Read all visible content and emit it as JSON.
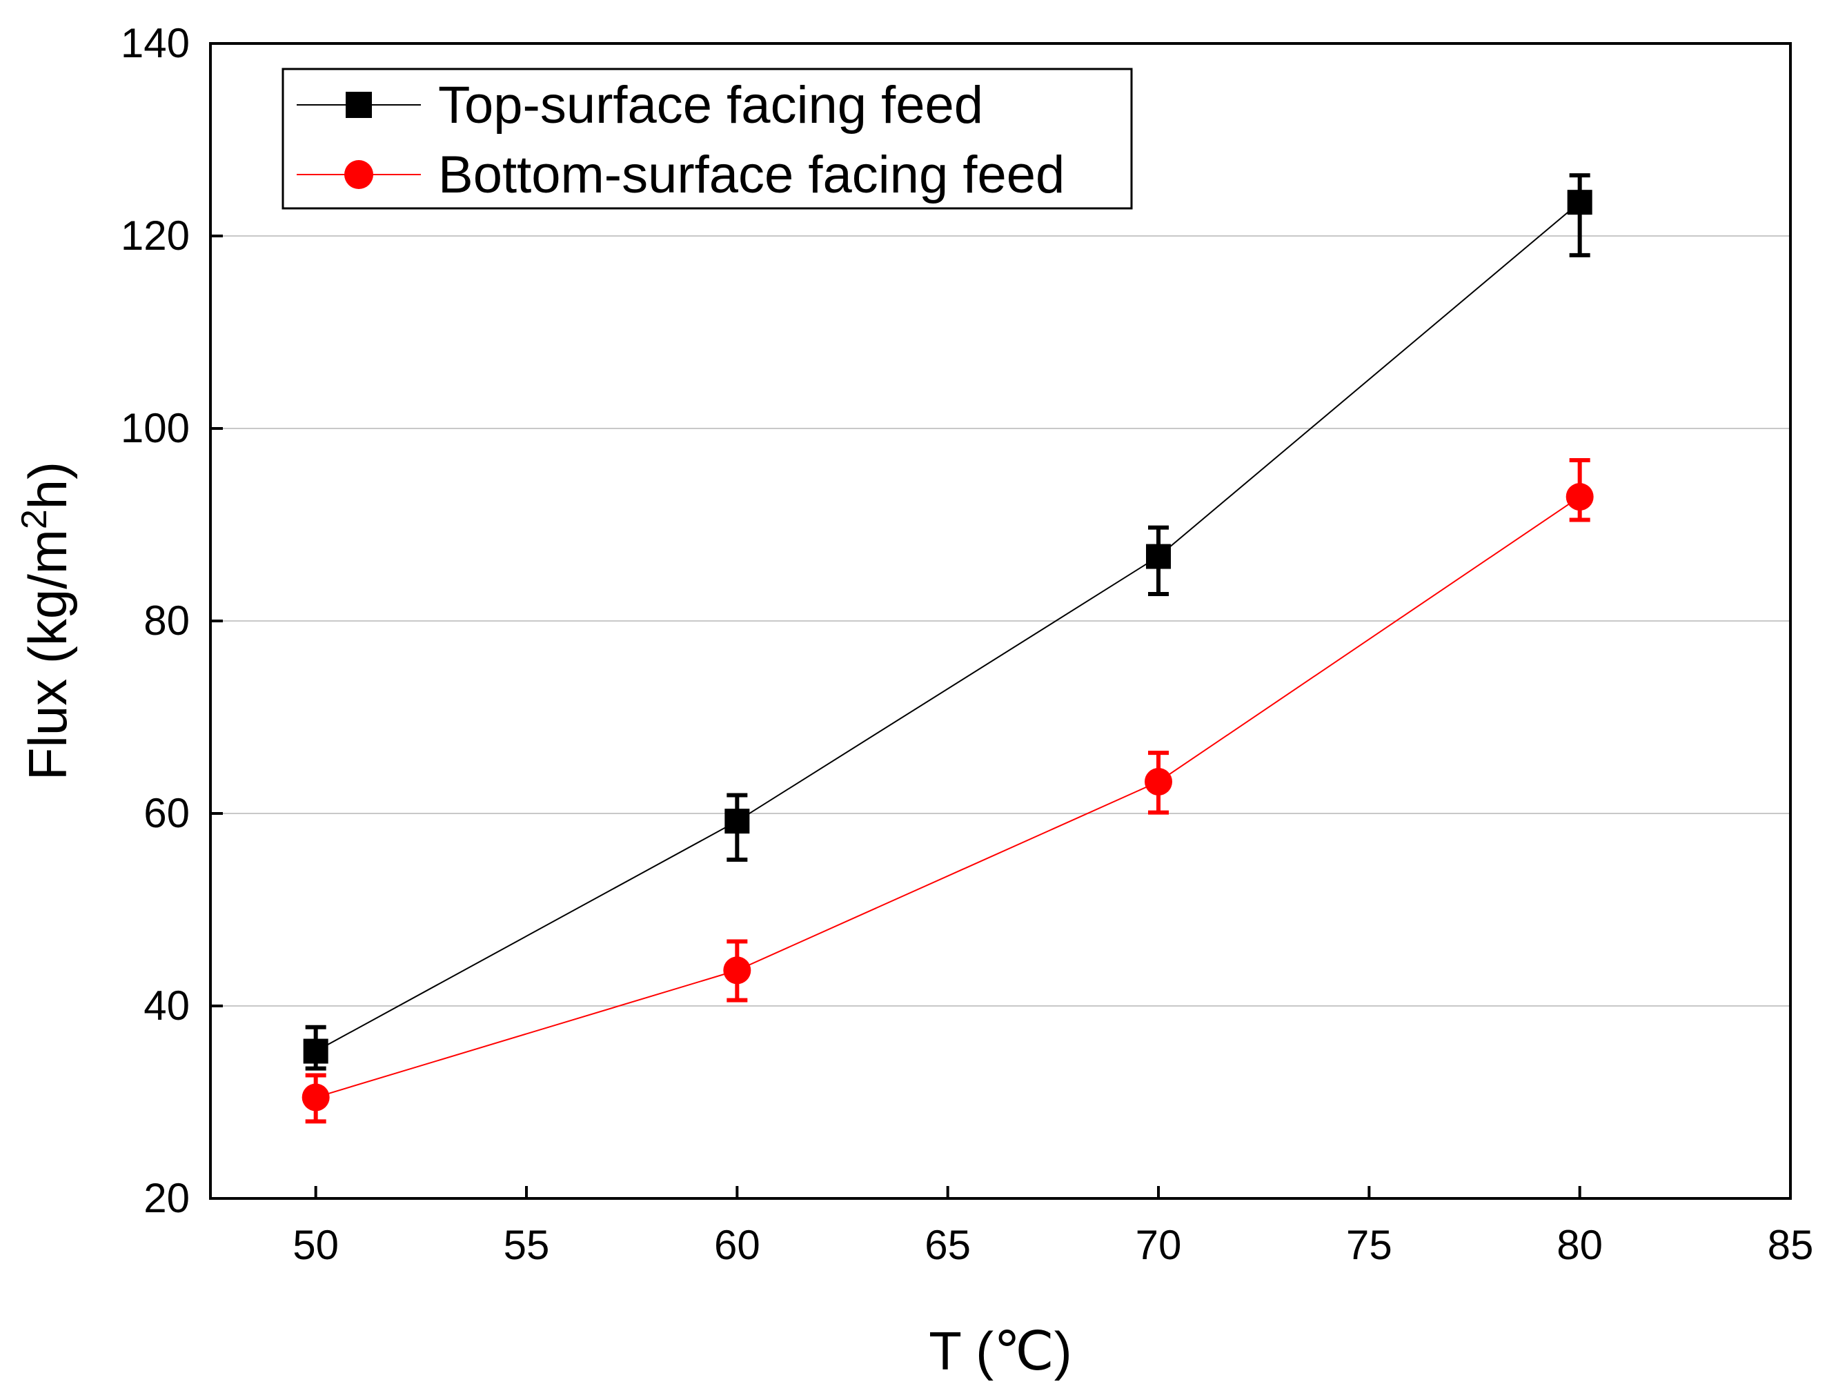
{
  "chart_data": {
    "type": "line",
    "title": "",
    "xlabel": "T (℃)",
    "ylabel": "Flux (kg/m²h)",
    "ylabel_parts": {
      "main": "Flux (kg/m",
      "sup": "2",
      "tail": "h)"
    },
    "xlim": [
      47.5,
      85
    ],
    "ylim": [
      20,
      140
    ],
    "xticks": [
      "50",
      "55",
      "60",
      "65",
      "70",
      "75",
      "80",
      "85"
    ],
    "xtick_values": [
      50,
      55,
      60,
      65,
      70,
      75,
      80,
      85
    ],
    "yticks": [
      "20",
      "40",
      "60",
      "80",
      "100",
      "120",
      "140"
    ],
    "ytick_values": [
      20,
      40,
      60,
      80,
      100,
      120,
      140
    ],
    "grid": "horizontal",
    "legend_position": "top-left",
    "series": [
      {
        "name": "Top-surface facing feed",
        "color": "#000000",
        "marker": "square",
        "x": [
          50,
          60,
          70,
          80
        ],
        "y": [
          35.3,
          59.2,
          86.7,
          123.5
        ],
        "err_upper": [
          37.8,
          61.9,
          89.7,
          126.3
        ],
        "err_lower": [
          33.5,
          55.2,
          82.8,
          118.0
        ]
      },
      {
        "name": "Bottom-surface facing feed",
        "color": "#ff0000",
        "marker": "circle",
        "x": [
          50,
          60,
          70,
          80
        ],
        "y": [
          30.5,
          43.7,
          63.3,
          92.9
        ],
        "err_upper": [
          32.8,
          46.7,
          66.3,
          96.7
        ],
        "err_lower": [
          28.0,
          40.6,
          60.1,
          90.5
        ]
      }
    ]
  }
}
